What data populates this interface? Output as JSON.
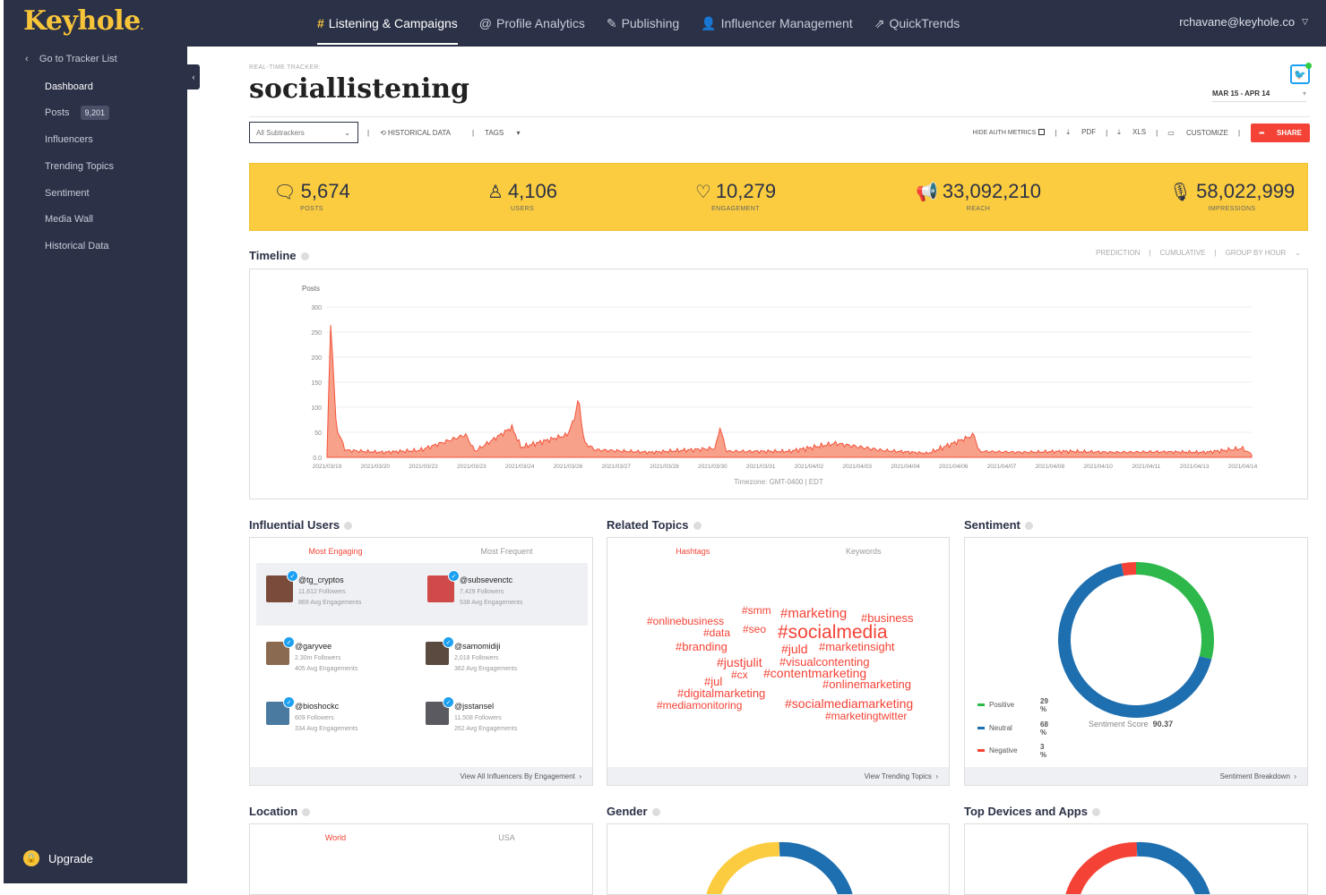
{
  "app": {
    "logo": "Keyhole",
    "logo_mark": "."
  },
  "nav": [
    {
      "icon": "#",
      "label": "Listening & Campaigns",
      "active": true
    },
    {
      "icon": "@",
      "label": "Profile Analytics"
    },
    {
      "icon": "✎",
      "label": "Publishing"
    },
    {
      "icon": "👤",
      "label": "Influencer Management"
    },
    {
      "icon": "⇗",
      "label": "QuickTrends"
    }
  ],
  "user": {
    "email": "rchavane@keyhole.co"
  },
  "sidebar": {
    "back": "Go to Tracker List",
    "items": [
      {
        "label": "Dashboard"
      },
      {
        "label": "Posts",
        "badge": "9,201"
      },
      {
        "label": "Influencers"
      },
      {
        "label": "Trending Topics"
      },
      {
        "label": "Sentiment"
      },
      {
        "label": "Media Wall"
      },
      {
        "label": "Historical Data"
      }
    ],
    "upgrade": "Upgrade"
  },
  "header": {
    "label": "REAL-TIME TRACKER:",
    "title": "sociallistening",
    "daterange": "MAR 15 - APR 14"
  },
  "toolbar": {
    "select": "All Subtrackers",
    "historical": "HISTORICAL DATA",
    "tags": "TAGS",
    "hide_auth": "HIDE AUTH METRICS",
    "pdf": "PDF",
    "xls": "XLS",
    "customize": "CUSTOMIZE",
    "share": "SHARE"
  },
  "kpis": [
    {
      "icon": "chat-icon",
      "value": "5,674",
      "label": "POSTS"
    },
    {
      "icon": "user-icon",
      "value": "4,106",
      "label": "USERS"
    },
    {
      "icon": "heart-icon",
      "value": "10,279",
      "label": "ENGAGEMENT"
    },
    {
      "icon": "megaphone-icon",
      "value": "33,092,210",
      "label": "REACH"
    },
    {
      "icon": "mic-icon",
      "value": "58,022,999",
      "label": "IMPRESSIONS"
    }
  ],
  "timeline": {
    "title": "Timeline",
    "options": [
      "PREDICTION",
      "CUMULATIVE",
      "GROUP BY HOUR"
    ],
    "timezone": "Timezone: GMT-0400 | EDT"
  },
  "chart_data": {
    "type": "area",
    "ylabel": "Posts",
    "ylim": [
      0,
      300
    ],
    "yticks": [
      "0.0",
      "50",
      "100",
      "150",
      "200",
      "250",
      "300"
    ],
    "xticks": [
      "2021/03/19",
      "2021/03/20",
      "2021/03/22",
      "2021/03/23",
      "2021/03/24",
      "2021/03/26",
      "2021/03/27",
      "2021/03/28",
      "2021/03/30",
      "2021/03/31",
      "2021/04/02",
      "2021/04/03",
      "2021/04/04",
      "2021/04/06",
      "2021/04/07",
      "2021/04/08",
      "2021/04/10",
      "2021/04/11",
      "2021/04/13",
      "2021/04/14"
    ],
    "series": [
      {
        "peaks": [
          {
            "x": 0.0,
            "y": 8
          },
          {
            "x": 0.004,
            "y": 275
          },
          {
            "x": 0.01,
            "y": 60
          },
          {
            "x": 0.02,
            "y": 14
          },
          {
            "x": 0.06,
            "y": 10
          },
          {
            "x": 0.1,
            "y": 14
          },
          {
            "x": 0.15,
            "y": 45
          },
          {
            "x": 0.16,
            "y": 12
          },
          {
            "x": 0.2,
            "y": 60
          },
          {
            "x": 0.21,
            "y": 20
          },
          {
            "x": 0.26,
            "y": 45
          },
          {
            "x": 0.268,
            "y": 80
          },
          {
            "x": 0.272,
            "y": 120
          },
          {
            "x": 0.278,
            "y": 30
          },
          {
            "x": 0.29,
            "y": 15
          },
          {
            "x": 0.35,
            "y": 10
          },
          {
            "x": 0.42,
            "y": 18
          },
          {
            "x": 0.425,
            "y": 60
          },
          {
            "x": 0.432,
            "y": 12
          },
          {
            "x": 0.5,
            "y": 12
          },
          {
            "x": 0.55,
            "y": 28
          },
          {
            "x": 0.6,
            "y": 14
          },
          {
            "x": 0.65,
            "y": 8
          },
          {
            "x": 0.7,
            "y": 45
          },
          {
            "x": 0.705,
            "y": 12
          },
          {
            "x": 0.75,
            "y": 10
          },
          {
            "x": 0.8,
            "y": 12
          },
          {
            "x": 0.85,
            "y": 10
          },
          {
            "x": 0.9,
            "y": 11
          },
          {
            "x": 0.95,
            "y": 10
          },
          {
            "x": 0.99,
            "y": 18
          },
          {
            "x": 1.0,
            "y": 6
          }
        ]
      }
    ]
  },
  "influential": {
    "title": "Influential Users",
    "tabs": [
      "Most Engaging",
      "Most Frequent"
    ],
    "users": [
      {
        "name": "@tg_cryptos",
        "followers": "11,612 Followers",
        "eng": "869 Avg Engagements"
      },
      {
        "name": "@subsevenctc",
        "followers": "7,429 Followers",
        "eng": "538 Avg Engagements"
      },
      {
        "name": "@garyvee",
        "followers": "2.30m Followers",
        "eng": "405 Avg Engagements"
      },
      {
        "name": "@samomidiji",
        "followers": "2,018 Followers",
        "eng": "362 Avg Engagements"
      },
      {
        "name": "@bioshockc",
        "followers": "609 Followers",
        "eng": "334 Avg Engagements"
      },
      {
        "name": "@jsstansel",
        "followers": "11,508 Followers",
        "eng": "262 Avg Engagements"
      }
    ],
    "footer": "View All Influencers By Engagement"
  },
  "topics": {
    "title": "Related Topics",
    "tabs": [
      "Hashtags",
      "Keywords"
    ],
    "hashtags": [
      "#smm",
      "#marketing",
      "#business",
      "#onlinebusiness",
      "#data",
      "#seo",
      "#socialmedia",
      "#branding",
      "#juld",
      "#marketinsight",
      "#justjulit",
      "#visualcontenting",
      "#cx",
      "#contentmarketing",
      "#jul",
      "#onlinemarketing",
      "#digitalmarketing",
      "#mediamonitoring",
      "#socialmediamarketing",
      "#marketingtwitter"
    ],
    "footer": "View Trending Topics"
  },
  "sentiment": {
    "title": "Sentiment",
    "rows": [
      {
        "label": "Positive",
        "pct": "29 %",
        "value": 29,
        "color": "#2eb84b"
      },
      {
        "label": "Neutral",
        "pct": "68 %",
        "value": 68,
        "color": "#1e6fb0"
      },
      {
        "label": "Negative",
        "pct": "3 %",
        "value": 3,
        "color": "#f44336"
      }
    ],
    "score_label": "Sentiment Score",
    "score": "90.37",
    "footer": "Sentiment Breakdown"
  },
  "location": {
    "title": "Location",
    "tabs": [
      "World",
      "USA"
    ]
  },
  "gender": {
    "title": "Gender"
  },
  "devices": {
    "title": "Top Devices and Apps"
  }
}
